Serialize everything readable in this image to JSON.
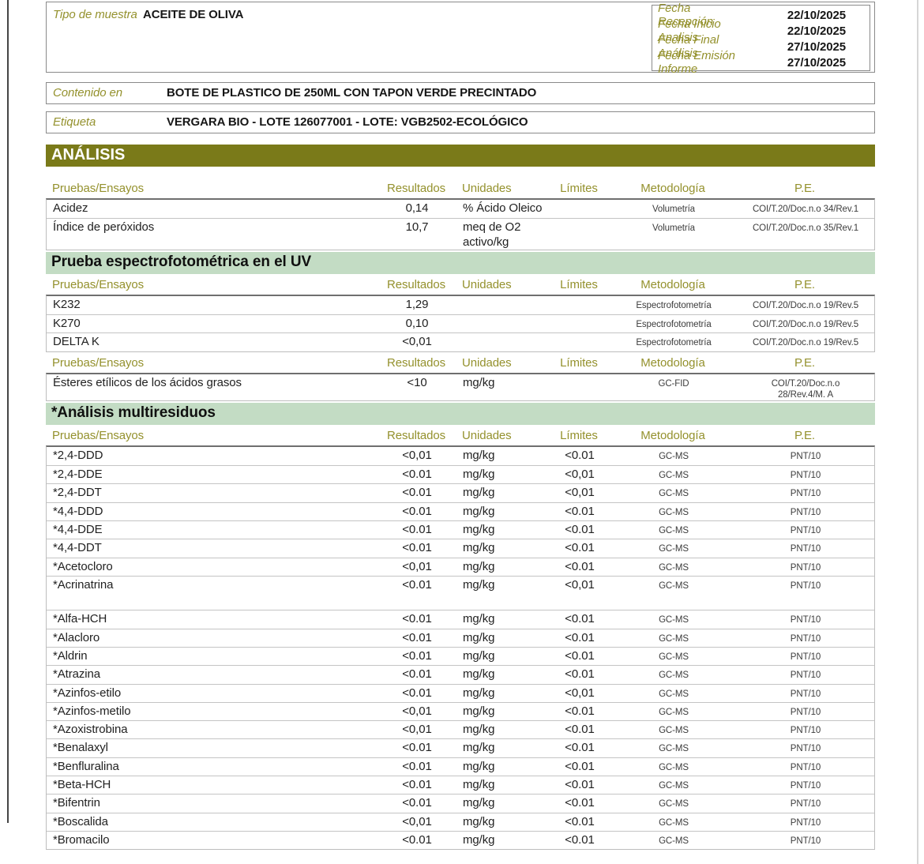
{
  "colors": {
    "accent_olive": "#7a7a19",
    "olive_text": "#94912d",
    "section_green": "#c3dcc4"
  },
  "document": {
    "sample": {
      "label": "Tipo de muestra",
      "value": "ACEITE DE OLIVA"
    },
    "dates": [
      {
        "label": "Fecha Recepción",
        "value": "22/10/2025"
      },
      {
        "label": "Fecha Inicio Analisis",
        "value": "22/10/2025"
      },
      {
        "label": "Fecha Final Análisis",
        "value": "27/10/2025"
      },
      {
        "label": "Fecha Emisión Informe",
        "value": "27/10/2025"
      }
    ],
    "contenido": {
      "label": "Contenido en",
      "value": "BOTE DE PLASTICO DE 250ML CON TAPON VERDE PRECINTADO"
    },
    "etiqueta": {
      "label": "Etiqueta",
      "value": "VERGARA BIO - LOTE 126077001 - LOTE: VGB2502-ECOLÓGICO"
    },
    "analysis_header": "ANÁLISIS",
    "columns": [
      "Pruebas/Ensayos",
      "Resultados",
      "Unidades",
      "Límites",
      "Metodología",
      "P.E."
    ],
    "sections": [
      {
        "title": null,
        "rows": [
          {
            "name": "Acidez",
            "result": "0,14",
            "units": "% Ácido Oleico",
            "limit": "",
            "method": "Volumetría",
            "pe": "COI/T.20/Doc.n.o 34/Rev.1"
          },
          {
            "name": "Índice de peróxidos",
            "result": "10,7",
            "units": "meq de O2\nactivo/kg",
            "limit": "",
            "method": "Volumetría",
            "pe": "COI/T.20/Doc.n.o 35/Rev.1"
          }
        ]
      },
      {
        "title": "Prueba espectrofotométrica en el UV",
        "rows": [
          {
            "name": "K232",
            "result": "1,29",
            "units": "",
            "limit": "",
            "method": "Espectrofotometría",
            "pe": "COI/T.20/Doc.n.o 19/Rev.5"
          },
          {
            "name": "K270",
            "result": "0,10",
            "units": "",
            "limit": "",
            "method": "Espectrofotometría",
            "pe": "COI/T.20/Doc.n.o 19/Rev.5"
          },
          {
            "name": "DELTA K",
            "result": "<0,01",
            "units": "",
            "limit": "",
            "method": "Espectrofotometría",
            "pe": "COI/T.20/Doc.n.o 19/Rev.5"
          }
        ]
      },
      {
        "title": null,
        "rows": [
          {
            "name": "Ésteres etílicos de los ácidos grasos",
            "result": "<10",
            "units": "mg/kg",
            "limit": "",
            "method": "GC-FID",
            "pe": "COI/T.20/Doc.n.o\n28/Rev.4/M. A"
          }
        ]
      },
      {
        "title": "*Análisis multiresiduos",
        "rows": [
          {
            "name": "*2,4-DDD",
            "result": "<0,01",
            "units": "mg/kg",
            "limit": "<0.01",
            "method": "GC-MS",
            "pe": "PNT/10"
          },
          {
            "name": "*2,4-DDE",
            "result": "<0.01",
            "units": "mg/kg",
            "limit": "<0,01",
            "method": "GC-MS",
            "pe": "PNT/10"
          },
          {
            "name": "*2,4-DDT",
            "result": "<0.01",
            "units": "mg/kg",
            "limit": "<0,01",
            "method": "GC-MS",
            "pe": "PNT/10"
          },
          {
            "name": "*4,4-DDD",
            "result": "<0.01",
            "units": "mg/kg",
            "limit": "<0.01",
            "method": "GC-MS",
            "pe": "PNT/10"
          },
          {
            "name": "*4,4-DDE",
            "result": "<0.01",
            "units": "mg/kg",
            "limit": "<0.01",
            "method": "GC-MS",
            "pe": "PNT/10"
          },
          {
            "name": "*4,4-DDT",
            "result": "<0.01",
            "units": "mg/kg",
            "limit": "<0.01",
            "method": "GC-MS",
            "pe": "PNT/10"
          },
          {
            "name": "*Acetocloro",
            "result": "<0,01",
            "units": "mg/kg",
            "limit": "<0.01",
            "method": "GC-MS",
            "pe": "PNT/10"
          },
          {
            "name": "*Acrinatrina",
            "result": "<0.01",
            "units": "mg/kg",
            "limit": "<0,01",
            "method": "GC-MS",
            "pe": "PNT/10",
            "tall": true
          },
          {
            "name": "*Alfa-HCH",
            "result": "<0.01",
            "units": "mg/kg",
            "limit": "<0.01",
            "method": "GC-MS",
            "pe": "PNT/10"
          },
          {
            "name": "*Alacloro",
            "result": "<0.01",
            "units": "mg/kg",
            "limit": "<0.01",
            "method": "GC-MS",
            "pe": "PNT/10"
          },
          {
            "name": "*Aldrin",
            "result": "<0.01",
            "units": "mg/kg",
            "limit": "<0.01",
            "method": "GC-MS",
            "pe": "PNT/10"
          },
          {
            "name": "*Atrazina",
            "result": "<0.01",
            "units": "mg/kg",
            "limit": "<0.01",
            "method": "GC-MS",
            "pe": "PNT/10"
          },
          {
            "name": "*Azinfos-etilo",
            "result": "<0.01",
            "units": "mg/kg",
            "limit": "<0,01",
            "method": "GC-MS",
            "pe": "PNT/10"
          },
          {
            "name": "*Azinfos-metilo",
            "result": "<0,01",
            "units": "mg/kg",
            "limit": "<0.01",
            "method": "GC-MS",
            "pe": "PNT/10"
          },
          {
            "name": "*Azoxistrobina",
            "result": "<0,01",
            "units": "mg/kg",
            "limit": "<0.01",
            "method": "GC-MS",
            "pe": "PNT/10"
          },
          {
            "name": "*Benalaxyl",
            "result": "<0.01",
            "units": "mg/kg",
            "limit": "<0.01",
            "method": "GC-MS",
            "pe": "PNT/10"
          },
          {
            "name": "*Benfluralina",
            "result": "<0.01",
            "units": "mg/kg",
            "limit": "<0.01",
            "method": "GC-MS",
            "pe": "PNT/10"
          },
          {
            "name": "*Beta-HCH",
            "result": "<0.01",
            "units": "mg/kg",
            "limit": "<0.01",
            "method": "GC-MS",
            "pe": "PNT/10"
          },
          {
            "name": "*Bifentrin",
            "result": "<0.01",
            "units": "mg/kg",
            "limit": "<0.01",
            "method": "GC-MS",
            "pe": "PNT/10"
          },
          {
            "name": "*Boscalida",
            "result": "<0,01",
            "units": "mg/kg",
            "limit": "<0.01",
            "method": "GC-MS",
            "pe": "PNT/10"
          },
          {
            "name": "*Bromacilo",
            "result": "<0.01",
            "units": "mg/kg",
            "limit": "<0.01",
            "method": "GC-MS",
            "pe": "PNT/10"
          }
        ]
      }
    ]
  }
}
